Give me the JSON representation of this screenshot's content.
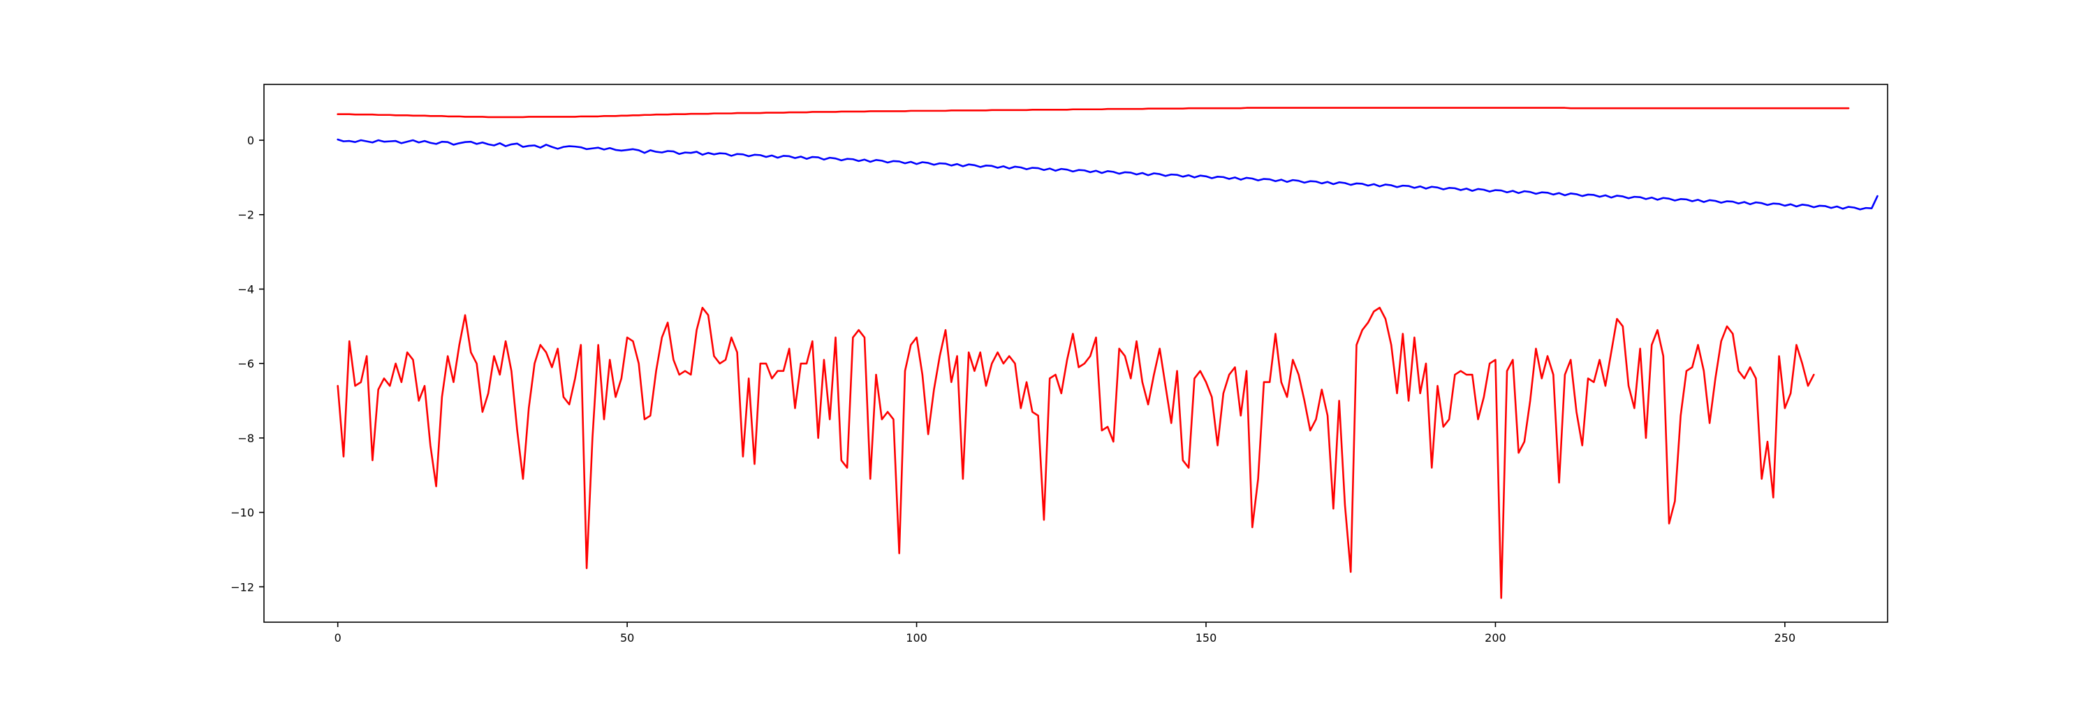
{
  "chart_data": {
    "type": "line",
    "title": "",
    "xlabel": "",
    "ylabel": "",
    "xlim": [
      -12.75,
      267.75
    ],
    "ylim": [
      -12.95,
      1.5
    ],
    "grid": false,
    "x_ticks": [
      0,
      50,
      100,
      150,
      200,
      250
    ],
    "y_ticks": [
      -12,
      -10,
      -8,
      -6,
      -4,
      -2,
      0
    ],
    "series": [
      {
        "color": "#ff0000",
        "x_start": 0,
        "x_step": 1,
        "values": [
          0.7,
          0.7,
          0.7,
          0.69,
          0.69,
          0.69,
          0.69,
          0.68,
          0.68,
          0.68,
          0.67,
          0.67,
          0.67,
          0.66,
          0.66,
          0.66,
          0.65,
          0.65,
          0.65,
          0.64,
          0.64,
          0.64,
          0.63,
          0.63,
          0.63,
          0.63,
          0.62,
          0.62,
          0.62,
          0.62,
          0.62,
          0.62,
          0.62,
          0.63,
          0.63,
          0.63,
          0.63,
          0.63,
          0.63,
          0.63,
          0.63,
          0.63,
          0.64,
          0.64,
          0.64,
          0.64,
          0.65,
          0.65,
          0.65,
          0.66,
          0.66,
          0.67,
          0.67,
          0.68,
          0.68,
          0.69,
          0.69,
          0.69,
          0.7,
          0.7,
          0.7,
          0.71,
          0.71,
          0.71,
          0.71,
          0.72,
          0.72,
          0.72,
          0.72,
          0.73,
          0.73,
          0.73,
          0.73,
          0.73,
          0.74,
          0.74,
          0.74,
          0.74,
          0.75,
          0.75,
          0.75,
          0.75,
          0.76,
          0.76,
          0.76,
          0.76,
          0.76,
          0.77,
          0.77,
          0.77,
          0.77,
          0.77,
          0.78,
          0.78,
          0.78,
          0.78,
          0.78,
          0.78,
          0.78,
          0.79,
          0.79,
          0.79,
          0.79,
          0.79,
          0.79,
          0.79,
          0.8,
          0.8,
          0.8,
          0.8,
          0.8,
          0.8,
          0.8,
          0.81,
          0.81,
          0.81,
          0.81,
          0.81,
          0.81,
          0.81,
          0.82,
          0.82,
          0.82,
          0.82,
          0.82,
          0.82,
          0.82,
          0.83,
          0.83,
          0.83,
          0.83,
          0.83,
          0.83,
          0.84,
          0.84,
          0.84,
          0.84,
          0.84,
          0.84,
          0.84,
          0.85,
          0.85,
          0.85,
          0.85,
          0.85,
          0.85,
          0.85,
          0.86,
          0.86,
          0.86,
          0.86,
          0.86,
          0.86,
          0.86,
          0.86,
          0.86,
          0.86,
          0.87,
          0.87,
          0.87,
          0.87,
          0.87,
          0.87,
          0.87,
          0.87,
          0.87,
          0.87,
          0.87,
          0.87,
          0.87,
          0.87,
          0.87,
          0.87,
          0.87,
          0.87,
          0.87,
          0.87,
          0.87,
          0.87,
          0.87,
          0.87,
          0.87,
          0.87,
          0.87,
          0.87,
          0.87,
          0.87,
          0.87,
          0.87,
          0.87,
          0.87,
          0.87,
          0.87,
          0.87,
          0.87,
          0.87,
          0.87,
          0.87,
          0.87,
          0.87,
          0.87,
          0.87,
          0.87,
          0.87,
          0.87,
          0.87,
          0.87,
          0.87,
          0.87,
          0.87,
          0.87,
          0.87,
          0.87,
          0.86,
          0.86,
          0.86,
          0.86,
          0.86,
          0.86,
          0.86,
          0.86,
          0.86,
          0.86,
          0.86,
          0.86,
          0.86,
          0.86,
          0.86,
          0.86,
          0.86,
          0.86,
          0.86,
          0.86,
          0.86,
          0.86,
          0.86,
          0.86,
          0.86,
          0.86,
          0.86,
          0.86,
          0.86,
          0.86,
          0.86,
          0.86,
          0.86,
          0.86,
          0.86,
          0.86,
          0.86,
          0.86,
          0.86,
          0.86,
          0.86,
          0.86,
          0.86,
          0.86,
          0.86,
          0.86,
          0.86,
          0.86,
          0.86
        ]
      },
      {
        "color": "#0000ff",
        "x_start": 0,
        "x_step": 1,
        "values": [
          0.02,
          -0.03,
          -0.02,
          -0.05,
          0.0,
          -0.03,
          -0.06,
          0.0,
          -0.04,
          -0.03,
          -0.02,
          -0.08,
          -0.04,
          0.0,
          -0.06,
          -0.02,
          -0.07,
          -0.1,
          -0.04,
          -0.05,
          -0.12,
          -0.08,
          -0.05,
          -0.04,
          -0.1,
          -0.06,
          -0.11,
          -0.14,
          -0.08,
          -0.16,
          -0.11,
          -0.09,
          -0.18,
          -0.15,
          -0.14,
          -0.2,
          -0.12,
          -0.18,
          -0.23,
          -0.18,
          -0.16,
          -0.17,
          -0.19,
          -0.24,
          -0.22,
          -0.2,
          -0.25,
          -0.21,
          -0.26,
          -0.28,
          -0.26,
          -0.24,
          -0.27,
          -0.34,
          -0.27,
          -0.31,
          -0.33,
          -0.29,
          -0.3,
          -0.37,
          -0.33,
          -0.34,
          -0.31,
          -0.39,
          -0.34,
          -0.38,
          -0.35,
          -0.36,
          -0.42,
          -0.37,
          -0.38,
          -0.43,
          -0.39,
          -0.4,
          -0.45,
          -0.41,
          -0.47,
          -0.42,
          -0.43,
          -0.48,
          -0.44,
          -0.5,
          -0.45,
          -0.46,
          -0.52,
          -0.47,
          -0.49,
          -0.54,
          -0.5,
          -0.51,
          -0.56,
          -0.52,
          -0.58,
          -0.53,
          -0.55,
          -0.6,
          -0.56,
          -0.57,
          -0.62,
          -0.58,
          -0.64,
          -0.59,
          -0.61,
          -0.66,
          -0.62,
          -0.63,
          -0.68,
          -0.64,
          -0.7,
          -0.65,
          -0.67,
          -0.72,
          -0.68,
          -0.69,
          -0.74,
          -0.7,
          -0.76,
          -0.71,
          -0.73,
          -0.78,
          -0.74,
          -0.75,
          -0.8,
          -0.76,
          -0.82,
          -0.77,
          -0.79,
          -0.84,
          -0.8,
          -0.81,
          -0.86,
          -0.82,
          -0.88,
          -0.83,
          -0.85,
          -0.9,
          -0.86,
          -0.87,
          -0.92,
          -0.88,
          -0.94,
          -0.89,
          -0.91,
          -0.96,
          -0.92,
          -0.93,
          -0.98,
          -0.94,
          -1.0,
          -0.95,
          -0.97,
          -1.02,
          -0.98,
          -0.99,
          -1.04,
          -1.0,
          -1.06,
          -1.01,
          -1.03,
          -1.08,
          -1.04,
          -1.05,
          -1.1,
          -1.06,
          -1.12,
          -1.07,
          -1.09,
          -1.14,
          -1.1,
          -1.11,
          -1.16,
          -1.12,
          -1.18,
          -1.13,
          -1.15,
          -1.2,
          -1.16,
          -1.17,
          -1.22,
          -1.18,
          -1.24,
          -1.19,
          -1.21,
          -1.26,
          -1.22,
          -1.23,
          -1.28,
          -1.24,
          -1.3,
          -1.25,
          -1.27,
          -1.32,
          -1.28,
          -1.29,
          -1.34,
          -1.3,
          -1.36,
          -1.31,
          -1.33,
          -1.38,
          -1.34,
          -1.35,
          -1.4,
          -1.36,
          -1.42,
          -1.37,
          -1.39,
          -1.44,
          -1.4,
          -1.41,
          -1.46,
          -1.42,
          -1.48,
          -1.43,
          -1.45,
          -1.5,
          -1.46,
          -1.47,
          -1.52,
          -1.48,
          -1.54,
          -1.49,
          -1.51,
          -1.56,
          -1.52,
          -1.53,
          -1.58,
          -1.54,
          -1.6,
          -1.55,
          -1.57,
          -1.62,
          -1.58,
          -1.59,
          -1.64,
          -1.6,
          -1.66,
          -1.61,
          -1.63,
          -1.68,
          -1.64,
          -1.65,
          -1.7,
          -1.66,
          -1.72,
          -1.67,
          -1.69,
          -1.74,
          -1.7,
          -1.71,
          -1.76,
          -1.72,
          -1.78,
          -1.73,
          -1.75,
          -1.8,
          -1.76,
          -1.77,
          -1.82,
          -1.78,
          -1.84,
          -1.79,
          -1.81,
          -1.86,
          -1.82,
          -1.83,
          -1.5
        ]
      },
      {
        "color": "#ff0000",
        "x_start": 0,
        "x_step": 1,
        "values": [
          -6.6,
          -8.5,
          -5.4,
          -6.6,
          -6.5,
          -5.8,
          -8.6,
          -6.7,
          -6.4,
          -6.6,
          -6.0,
          -6.5,
          -5.7,
          -5.9,
          -7.0,
          -6.6,
          -8.2,
          -9.3,
          -6.9,
          -5.8,
          -6.5,
          -5.5,
          -4.7,
          -5.7,
          -6.0,
          -7.3,
          -6.8,
          -5.8,
          -6.3,
          -5.4,
          -6.2,
          -7.8,
          -9.1,
          -7.2,
          -6.0,
          -5.5,
          -5.7,
          -6.1,
          -5.6,
          -6.9,
          -7.1,
          -6.4,
          -5.5,
          -11.5,
          -8.0,
          -5.5,
          -7.5,
          -5.9,
          -6.9,
          -6.4,
          -5.3,
          -5.4,
          -6.0,
          -7.5,
          -7.4,
          -6.2,
          -5.3,
          -4.9,
          -5.9,
          -6.3,
          -6.2,
          -6.3,
          -5.1,
          -4.5,
          -4.7,
          -5.8,
          -6.0,
          -5.9,
          -5.3,
          -5.7,
          -8.5,
          -6.4,
          -8.7,
          -6.0,
          -6.0,
          -6.4,
          -6.2,
          -6.2,
          -5.6,
          -7.2,
          -6.0,
          -6.0,
          -5.4,
          -8.0,
          -5.9,
          -7.5,
          -5.3,
          -8.6,
          -8.8,
          -5.3,
          -5.1,
          -5.3,
          -9.1,
          -6.3,
          -7.5,
          -7.3,
          -7.5,
          -11.1,
          -6.2,
          -5.5,
          -5.3,
          -6.3,
          -7.9,
          -6.7,
          -5.8,
          -5.1,
          -6.5,
          -5.8,
          -9.1,
          -5.7,
          -6.2,
          -5.7,
          -6.6,
          -6.0,
          -5.7,
          -6.0,
          -5.8,
          -6.0,
          -7.2,
          -6.5,
          -7.3,
          -7.4,
          -10.2,
          -6.4,
          -6.3,
          -6.8,
          -5.9,
          -5.2,
          -6.1,
          -6.0,
          -5.8,
          -5.3,
          -7.8,
          -7.7,
          -8.1,
          -5.6,
          -5.8,
          -6.4,
          -5.4,
          -6.5,
          -7.1,
          -6.3,
          -5.6,
          -6.6,
          -7.6,
          -6.2,
          -8.6,
          -8.8,
          -6.4,
          -6.2,
          -6.5,
          -6.9,
          -8.2,
          -6.8,
          -6.3,
          -6.1,
          -7.4,
          -6.2,
          -10.4,
          -9.1,
          -6.5,
          -6.5,
          -5.2,
          -6.5,
          -6.9,
          -5.9,
          -6.3,
          -7.0,
          -7.8,
          -7.5,
          -6.7,
          -7.4,
          -9.9,
          -7.0,
          -9.8,
          -11.6,
          -5.5,
          -5.1,
          -4.9,
          -4.6,
          -4.5,
          -4.8,
          -5.5,
          -6.8,
          -5.2,
          -7.0,
          -5.3,
          -6.8,
          -6.0,
          -8.8,
          -6.6,
          -7.7,
          -7.5,
          -6.3,
          -6.2,
          -6.3,
          -6.3,
          -7.5,
          -6.9,
          -6.0,
          -5.9,
          -12.3,
          -6.2,
          -5.9,
          -8.4,
          -8.1,
          -7.0,
          -5.6,
          -6.4,
          -5.8,
          -6.3,
          -9.2,
          -6.3,
          -5.9,
          -7.3,
          -8.2,
          -6.4,
          -6.5,
          -5.9,
          -6.6,
          -5.7,
          -4.8,
          -5.0,
          -6.6,
          -7.2,
          -5.6,
          -8.0,
          -5.5,
          -5.1,
          -5.8,
          -10.3,
          -9.7,
          -7.4,
          -6.2,
          -6.1,
          -5.5,
          -6.2,
          -7.6,
          -6.4,
          -5.4,
          -5.0,
          -5.2,
          -6.2,
          -6.4,
          -6.1,
          -6.4,
          -9.1,
          -8.1,
          -9.6,
          -5.8,
          -7.2,
          -6.8,
          -5.5,
          -6.0,
          -6.6,
          -6.3
        ]
      }
    ]
  }
}
